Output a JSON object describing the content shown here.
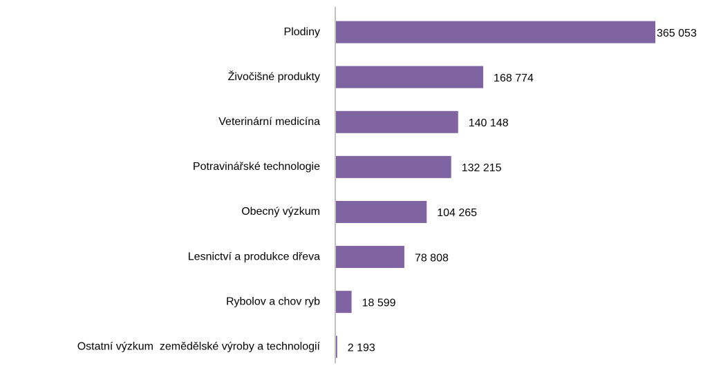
{
  "chart_data": {
    "type": "barh",
    "categories": [
      "Plodiny",
      "Živočišné produkty",
      "Veterinární medicína",
      "Potravinářské technologie",
      "Obecný výzkum",
      "Lesnictví a produkce dřeva",
      "Rybolov a chov ryb",
      "Ostatní výzkum  zemědělské výroby a technologií"
    ],
    "values": [
      365053,
      168774,
      140148,
      132215,
      104265,
      78808,
      18599,
      2193
    ],
    "value_labels": [
      "365 053",
      "168 774",
      "140 148",
      "132 215",
      "104 265",
      "78 808",
      "18 599",
      "2 193"
    ],
    "color": "#8064a2"
  }
}
